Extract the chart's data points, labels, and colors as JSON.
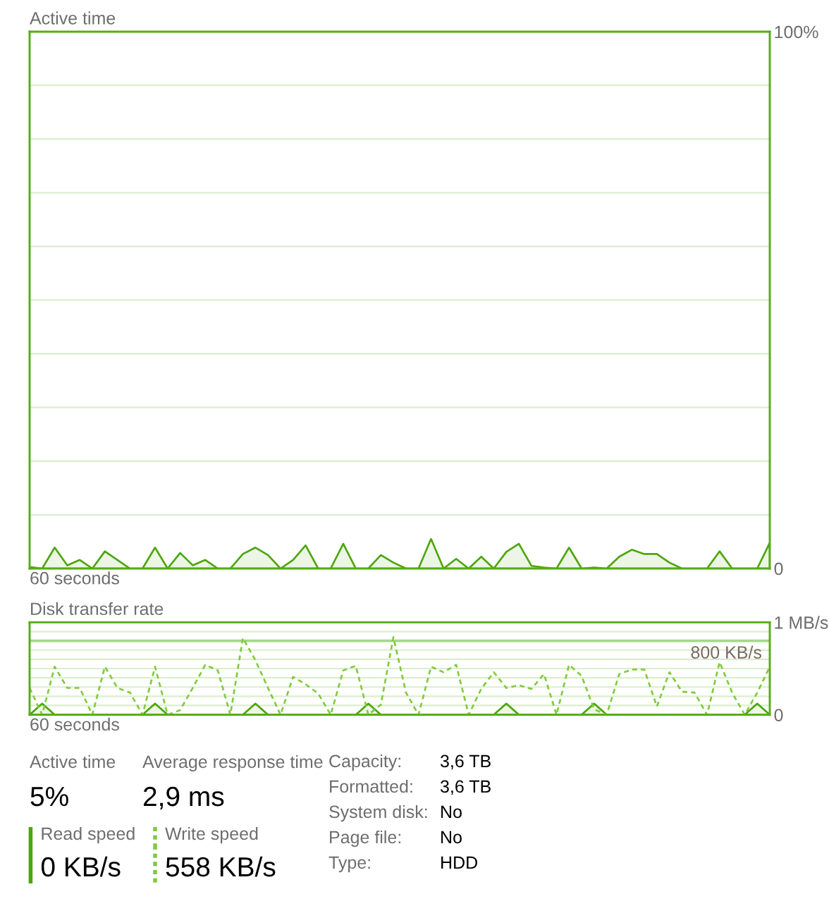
{
  "chart_data": [
    {
      "type": "area",
      "title": "Active time",
      "xlabel": "60 seconds",
      "color": "#4da60c",
      "categories": [
        null,
        null,
        null,
        null,
        null,
        null,
        null,
        null,
        null,
        null,
        null,
        null,
        null,
        null,
        null,
        null,
        null,
        null,
        null,
        null,
        null,
        null,
        null,
        null,
        null,
        null,
        null,
        null,
        null,
        null,
        null,
        null,
        null,
        null,
        null,
        null,
        null,
        null,
        null,
        null,
        null,
        null,
        null,
        null,
        null,
        null,
        null,
        null,
        null,
        null,
        null,
        null,
        null,
        null,
        null,
        null,
        null,
        null,
        null,
        null
      ],
      "values": [
        0.3,
        0,
        3.9,
        0.6,
        1.6,
        0,
        3.2,
        1.6,
        0,
        0,
        3.9,
        0,
        2.9,
        0.6,
        1.6,
        0,
        0,
        2.7,
        3.9,
        2.5,
        0,
        1.6,
        4.3,
        0,
        0,
        4.6,
        0,
        0,
        2.5,
        1.1,
        0,
        0,
        5.5,
        0,
        1.8,
        0,
        2.2,
        0,
        3.1,
        4.6,
        0.5,
        0.2,
        0,
        3.9,
        0,
        0.2,
        0,
        2.2,
        3.5,
        2.7,
        2.7,
        1.1,
        0,
        0,
        0,
        3.2,
        0,
        0,
        0,
        4.8
      ],
      "ylim": [
        0,
        100
      ],
      "yticks": [
        {
          "value": 0,
          "label": "0"
        },
        {
          "value": 10,
          "label": null
        },
        {
          "value": 20,
          "label": null
        },
        {
          "value": 30,
          "label": null
        },
        {
          "value": 40,
          "label": null
        },
        {
          "value": 50,
          "label": null
        },
        {
          "value": 60,
          "label": null
        },
        {
          "value": 70,
          "label": null
        },
        {
          "value": 80,
          "label": null
        },
        {
          "value": 90,
          "label": null
        },
        {
          "value": 100,
          "label": "100%"
        }
      ],
      "grid": "y"
    },
    {
      "type": "line",
      "title": "Disk transfer rate",
      "xlabel": "60 seconds",
      "categories": [
        null,
        null,
        null,
        null,
        null,
        null,
        null,
        null,
        null,
        null,
        null,
        null,
        null,
        null,
        null,
        null,
        null,
        null,
        null,
        null,
        null,
        null,
        null,
        null,
        null,
        null,
        null,
        null,
        null,
        null,
        null,
        null,
        null,
        null,
        null,
        null,
        null,
        null,
        null,
        null,
        null,
        null,
        null,
        null,
        null,
        null,
        null,
        null,
        null,
        null,
        null,
        null,
        null,
        null,
        null,
        null,
        null,
        null,
        null,
        null
      ],
      "series": [
        {
          "name": "Read speed",
          "type": "area",
          "color": "#4da60c",
          "line_style": "solid",
          "values": [
            0,
            0.12,
            0,
            0,
            0,
            0,
            0,
            0,
            0,
            0,
            0.12,
            0,
            0,
            0,
            0,
            0,
            0,
            0,
            0.12,
            0,
            0,
            0,
            0,
            0,
            0,
            0,
            0,
            0.12,
            0,
            0,
            0,
            0,
            0,
            0,
            0,
            0,
            0,
            0,
            0.12,
            0,
            0,
            0,
            0,
            0,
            0,
            0.12,
            0,
            0,
            0,
            0,
            0,
            0,
            0,
            0,
            0,
            0,
            0,
            0,
            0.12,
            0
          ]
        },
        {
          "name": "Write speed",
          "color": "#7fcb3d",
          "line_style": "dashed",
          "values": [
            0.29,
            0,
            0.52,
            0.29,
            0.29,
            0,
            0.52,
            0.29,
            0.24,
            0,
            0.52,
            0,
            0.05,
            0.29,
            0.54,
            0.48,
            0,
            0.83,
            0.59,
            0.29,
            0,
            0.41,
            0.33,
            0.23,
            0,
            0.48,
            0.53,
            0,
            0.11,
            0.84,
            0.24,
            0,
            0.52,
            0.46,
            0.54,
            0,
            0.28,
            0.46,
            0.29,
            0.32,
            0.28,
            0.44,
            0,
            0.54,
            0.42,
            0.06,
            0,
            0.44,
            0.49,
            0.49,
            0.09,
            0.46,
            0.25,
            0.24,
            0,
            0.57,
            0.24,
            0,
            0.24,
            0.52
          ]
        }
      ],
      "ylim": [
        0,
        1
      ],
      "yticks": [
        {
          "value": 0,
          "label": "0"
        },
        {
          "value": 0.1,
          "label": null
        },
        {
          "value": 0.2,
          "label": null
        },
        {
          "value": 0.3,
          "label": null
        },
        {
          "value": 0.4,
          "label": null
        },
        {
          "value": 0.5,
          "label": null
        },
        {
          "value": 0.6,
          "label": null
        },
        {
          "value": 0.7,
          "label": null
        },
        {
          "value": 0.8,
          "label": null
        },
        {
          "value": 0.9,
          "label": null
        },
        {
          "value": 1,
          "label": "1 MB/s"
        }
      ],
      "grid": "y",
      "ref_lines": [
        {
          "axis": "y",
          "value": 0.8,
          "label": "800 KB/s",
          "color": "#a5d88a"
        }
      ],
      "legend": "bottom",
      "annotations": [
        "Active time",
        "5%",
        "Average response time",
        "2,9 ms",
        "0 KB/s",
        "558 KB/s",
        "Capacity:",
        "3,6 TB",
        "Formatted:",
        "3,6 TB",
        "System disk:",
        "No",
        "Page file:",
        "No",
        "Type:",
        "HDD"
      ]
    }
  ]
}
